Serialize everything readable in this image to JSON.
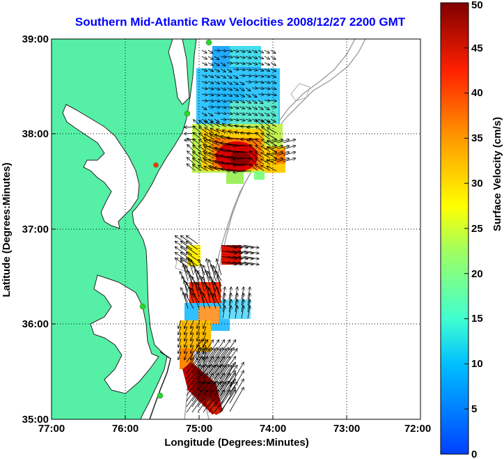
{
  "title": "Southern Mid-Atlantic Raw Velocities 2008/12/27 2200 GMT",
  "xlabel": "Longitude (Degrees:Minutes)",
  "ylabel": "Latitude (Degrees:Minutes)",
  "x_ticks": [
    "77:00",
    "76:00",
    "75:00",
    "74:00",
    "73:00",
    "72:00"
  ],
  "y_ticks": [
    "39:00",
    "38:00",
    "37:00",
    "36:00",
    "35:00"
  ],
  "colorbar": {
    "label": "Surface Velocity (cm/s)",
    "ticks": [
      "0",
      "5",
      "10",
      "15",
      "20",
      "25",
      "30",
      "35",
      "40",
      "45",
      "50"
    ]
  },
  "colors": {
    "land": "#55f0a6",
    "title": "#0000ff",
    "station": "#22dd22",
    "station_offline": "#ff3300"
  }
}
